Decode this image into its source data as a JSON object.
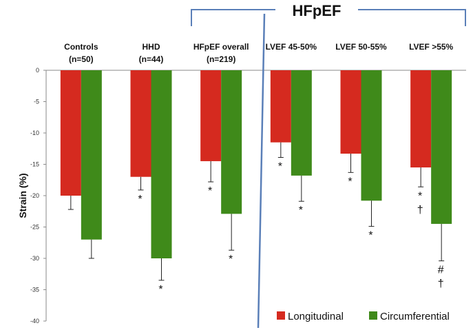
{
  "chart_data": {
    "type": "bar",
    "ylabel": "Strain (%)",
    "ylim": [
      -40,
      0
    ],
    "yticks": [
      0,
      -5,
      -10,
      -15,
      -20,
      -25,
      -30,
      -35,
      -40
    ],
    "group_title": "HFpEF",
    "categories": [
      {
        "line1": "Controls",
        "line2": "(n=50)"
      },
      {
        "line1": "HHD",
        "line2": "(n=44)"
      },
      {
        "line1": "HFpEF overall",
        "line2": "(n=219)"
      },
      {
        "line1": "LVEF 45-50%",
        "line2": ""
      },
      {
        "line1": "LVEF 50-55%",
        "line2": ""
      },
      {
        "line1": "LVEF >55%",
        "line2": ""
      }
    ],
    "series": [
      {
        "name": "Longitudinal",
        "color": "#d52a1f",
        "values": [
          -20.0,
          -17.0,
          -14.5,
          -11.5,
          -13.3,
          -15.5
        ],
        "errors": [
          2.2,
          2.1,
          3.3,
          2.4,
          3.0,
          3.1
        ],
        "annotations": [
          [],
          [
            "*"
          ],
          [
            "*"
          ],
          [
            "*"
          ],
          [
            "*"
          ],
          [
            "*",
            "†"
          ]
        ]
      },
      {
        "name": "Circumferential",
        "color": "#3f8a1a",
        "values": [
          -27.0,
          -30.0,
          -22.9,
          -16.8,
          -20.8,
          -24.5
        ],
        "errors": [
          3.0,
          3.5,
          5.8,
          4.1,
          4.1,
          5.9
        ],
        "annotations": [
          [],
          [
            "*"
          ],
          [
            "*"
          ],
          [
            "*"
          ],
          [
            "*"
          ],
          [
            "#",
            "†"
          ]
        ]
      }
    ],
    "legend_position": "bottom-right"
  }
}
